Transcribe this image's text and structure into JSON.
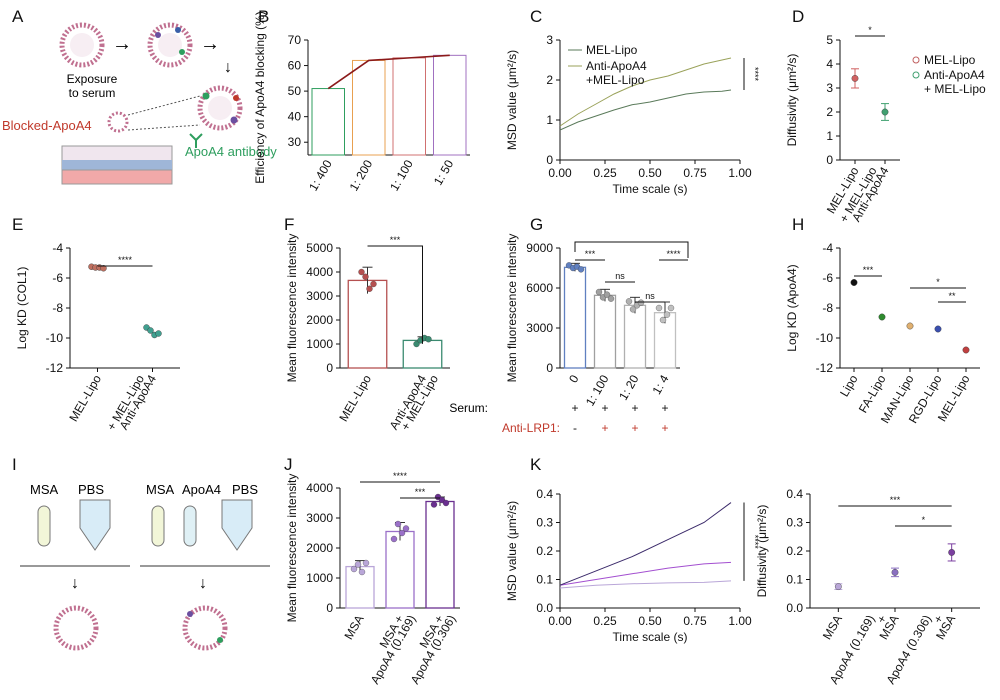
{
  "panel_letters": [
    "A",
    "B",
    "C",
    "D",
    "E",
    "F",
    "G",
    "H",
    "I",
    "J",
    "K"
  ],
  "panelA": {
    "exposure": [
      "Exposure",
      "to serum"
    ],
    "blocked": "Blocked-ApoA4",
    "antibody": "ApoA4 antibody"
  },
  "panelI": {
    "left_labels": [
      "MSA",
      "PBS"
    ],
    "right_labels": [
      "MSA",
      "ApoA4",
      "PBS"
    ]
  },
  "panelG_rows": {
    "serum_label": "Serum:",
    "serum_marks": [
      "+",
      "+",
      "+",
      "+"
    ],
    "lrp_label": "Anti-LRP1:",
    "lrp_marks": [
      "-",
      "+",
      "+",
      "+"
    ]
  },
  "colors": {
    "red": "#c0392b",
    "green": "#2e9e5e",
    "dark_red": "#8b1a1a",
    "purple": "#7b3fa0",
    "lavender": "#b9a6d8",
    "blue": "#3a5fa8",
    "gray": "#888888"
  },
  "chart_data": [
    {
      "panel": "B",
      "type": "bar",
      "ylabel": "Efficiency of ApoA4 blocking (%)",
      "categories": [
        "1: 400",
        "1: 200",
        "1: 100",
        "1: 50"
      ],
      "values": [
        51,
        62,
        63,
        64
      ],
      "ylim": [
        25,
        70
      ],
      "yticks": [
        30,
        40,
        50,
        60,
        70
      ]
    },
    {
      "panel": "C",
      "type": "line",
      "ylabel": "MSD value (μm²/s)",
      "xlabel": "Time scale (s)",
      "xlim": [
        0,
        1
      ],
      "ylim": [
        0,
        3
      ],
      "xticks": [
        "0.00",
        "0.25",
        "0.50",
        "0.75",
        "1.00"
      ],
      "yticks": [
        0,
        1,
        2,
        3
      ],
      "series": [
        {
          "name": "MEL-Lipo",
          "x": [
            0,
            0.1,
            0.2,
            0.3,
            0.4,
            0.5,
            0.6,
            0.7,
            0.8,
            0.9,
            0.95
          ],
          "y": [
            0.75,
            0.95,
            1.1,
            1.25,
            1.38,
            1.45,
            1.55,
            1.65,
            1.7,
            1.72,
            1.75
          ]
        },
        {
          "name": "Anti-ApoA4 +MEL-Lipo",
          "x": [
            0,
            0.1,
            0.2,
            0.3,
            0.4,
            0.5,
            0.6,
            0.7,
            0.8,
            0.9,
            0.95
          ],
          "y": [
            0.85,
            1.15,
            1.4,
            1.65,
            1.85,
            2.0,
            2.1,
            2.25,
            2.4,
            2.5,
            2.55
          ]
        }
      ],
      "annotations": [
        "****"
      ]
    },
    {
      "panel": "D",
      "type": "scatter",
      "ylabel": "Diffusivity (μm²/s)",
      "categories": [
        "MEL-Lipo",
        "Anti-ApoA4 + MEL-Lipo"
      ],
      "values": [
        3.4,
        2.0
      ],
      "errors": [
        0.4,
        0.35
      ],
      "ylim": [
        0,
        5
      ],
      "yticks": [
        0,
        1,
        2,
        3,
        4,
        5
      ],
      "legend": [
        "MEL-Lipo",
        "Anti-ApoA4",
        "+ MEL-Lipo"
      ],
      "annotations": [
        "*"
      ]
    },
    {
      "panel": "E",
      "type": "scatter",
      "ylabel": "Log KD (COL1)",
      "categories": [
        "MEL-Lipo",
        "Anti-ApoA4 + MEL-Lipo"
      ],
      "values": [
        -5.3,
        -9.6
      ],
      "points": [
        [
          -5.25,
          -5.3,
          -5.3,
          -5.35
        ],
        [
          -9.3,
          -9.5,
          -9.8,
          -9.7
        ]
      ],
      "ylim": [
        -12,
        -4
      ],
      "yticks": [
        -4,
        -6,
        -8,
        -10,
        -12
      ],
      "annotations": [
        "****"
      ]
    },
    {
      "panel": "F",
      "type": "bar",
      "ylabel": "Mean fluorescence intensity",
      "categories": [
        "MEL-Lipo",
        "Anti-ApoA4 + MEL-Lipo"
      ],
      "values": [
        3650,
        1150
      ],
      "errors": [
        550,
        150
      ],
      "points": [
        [
          4000,
          3800,
          3300,
          3500
        ],
        [
          1000,
          1150,
          1250,
          1200
        ]
      ],
      "ylim": [
        0,
        5000
      ],
      "yticks": [
        0,
        1000,
        2000,
        3000,
        4000,
        5000
      ],
      "annotations": [
        "***"
      ]
    },
    {
      "panel": "G",
      "type": "bar",
      "ylabel": "Mean fluorescence intensity",
      "categories": [
        "0",
        "1: 100",
        "1: 20",
        "1: 4"
      ],
      "values": [
        7550,
        5450,
        4700,
        4150
      ],
      "errors": [
        300,
        450,
        600,
        800
      ],
      "points": [
        [
          7700,
          7500,
          7600,
          7400
        ],
        [
          5700,
          5300,
          5500,
          5200
        ],
        [
          5000,
          4400,
          4700,
          4900
        ],
        [
          4500,
          3600,
          4000,
          4500
        ]
      ],
      "ylim": [
        0,
        9000
      ],
      "yticks": [
        0,
        3000,
        6000,
        9000
      ],
      "annotations": [
        "***",
        "ns",
        "ns",
        "****"
      ]
    },
    {
      "panel": "H",
      "type": "scatter",
      "ylabel": "Log KD (ApoA4)",
      "categories": [
        "Lipo",
        "FA-Lipo",
        "MAN-Lipo",
        "RGD-Lipo",
        "MEL-Lipo"
      ],
      "values": [
        -6.3,
        -8.6,
        -9.2,
        -9.4,
        -10.8
      ],
      "ylim": [
        -12,
        -4
      ],
      "yticks": [
        -4,
        -6,
        -8,
        -10,
        -12
      ],
      "annotations": [
        "***",
        "*",
        "**"
      ]
    },
    {
      "panel": "J",
      "type": "bar",
      "ylabel": "Mean fluorescence intensity",
      "categories": [
        "MSA",
        "MSA + ApoA4 (0.169)",
        "MSA + ApoA4 (0.306)"
      ],
      "values": [
        1380,
        2550,
        3550
      ],
      "errors": [
        200,
        300,
        150
      ],
      "points": [
        [
          1300,
          1450,
          1200,
          1500
        ],
        [
          2300,
          2800,
          2500,
          2650
        ],
        [
          3450,
          3700,
          3600,
          3500
        ]
      ],
      "ylim": [
        0,
        4000
      ],
      "yticks": [
        0,
        1000,
        2000,
        3000,
        4000
      ],
      "annotations": [
        "****",
        "***"
      ]
    },
    {
      "panel": "K",
      "type": "line",
      "ylabel": "MSD value (μm²/s)",
      "xlabel": "Time scale (s)",
      "xlim": [
        0,
        1
      ],
      "ylim": [
        0,
        0.4
      ],
      "xticks": [
        "0.00",
        "0.25",
        "0.50",
        "0.75",
        "1.00"
      ],
      "yticks": [
        "0.0",
        "0.1",
        "0.2",
        "0.3",
        "0.4"
      ],
      "series": [
        {
          "x": [
            0,
            0.2,
            0.4,
            0.6,
            0.8,
            0.95
          ],
          "y": [
            0.07,
            0.08,
            0.085,
            0.088,
            0.09,
            0.095
          ]
        },
        {
          "x": [
            0,
            0.2,
            0.4,
            0.6,
            0.8,
            0.95
          ],
          "y": [
            0.08,
            0.1,
            0.12,
            0.14,
            0.155,
            0.16
          ]
        },
        {
          "x": [
            0,
            0.2,
            0.4,
            0.6,
            0.8,
            0.95
          ],
          "y": [
            0.08,
            0.13,
            0.18,
            0.24,
            0.3,
            0.37
          ]
        }
      ],
      "annotations": [
        "****"
      ]
    },
    {
      "panel": "K2",
      "type": "scatter",
      "ylabel": "Diffusivity (μm²/s)",
      "categories": [
        "MSA",
        "MSA + ApoA4 (0.169)",
        "MSA + ApoA4 (0.306)"
      ],
      "values": [
        0.075,
        0.125,
        0.195
      ],
      "errors": [
        0.01,
        0.015,
        0.03
      ],
      "ylim": [
        0,
        0.4
      ],
      "yticks": [
        "0.0",
        "0.1",
        "0.2",
        "0.3",
        "0.4"
      ],
      "annotations": [
        "***",
        "*"
      ]
    }
  ]
}
